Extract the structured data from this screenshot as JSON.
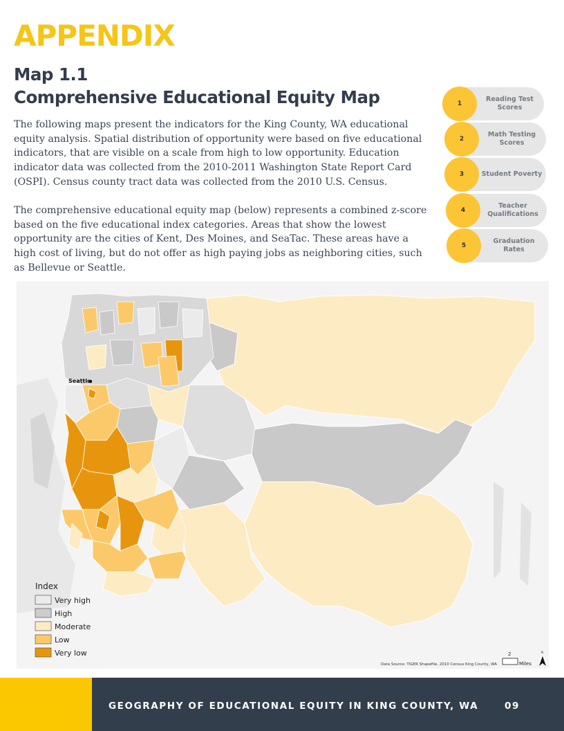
{
  "header": {
    "appendix": "APPENDIX",
    "map_number": "Map 1.1",
    "map_title": "Comprehensive Educational Equity Map"
  },
  "body": {
    "paragraph_1": "The following maps present the indicators for the King County, WA educational equity analysis. Spatial distribution of opportunity were based on five educational indicators, that are visible on a scale from high to low opportunity. Education indicator data was collected from the 2010-2011 Washington State Report Card (OSPI). Census county tract data was collected from the 2010 U.S. Census.",
    "paragraph_2": "The comprehensive educational equity map (below) represents a combined z-score based on the five educational index categories. Areas that show the lowest opportunity are the cities of Kent, Des Moines, and SeaTac. These areas have a high cost of living, but do not offer as high paying jobs as neighboring cities, such as Bellevue or Seattle."
  },
  "indicators": [
    {
      "number": "1",
      "label": "Reading Test\nScores"
    },
    {
      "number": "2",
      "label": "Math Testing\nScores"
    },
    {
      "number": "3",
      "label": "Student Poverty"
    },
    {
      "number": "4",
      "label": "Teacher\nQualifications"
    },
    {
      "number": "5",
      "label": "Graduation Rates"
    }
  ],
  "map": {
    "city_label": "Seattle",
    "legend_title": "Index",
    "legend": [
      {
        "label": "Very high",
        "color": "#ebebeb"
      },
      {
        "label": "High",
        "color": "#cdcdcd"
      },
      {
        "label": "Moderate",
        "color": "#fdebc4"
      },
      {
        "label": "Low",
        "color": "#fcc96a"
      },
      {
        "label": "Very low",
        "color": "#e8950e"
      }
    ],
    "source": "Data Source: TIGER Shapefile, 2010 Census King County, WA",
    "scale_value": "2",
    "scale_unit": "Miles",
    "north_label": "N"
  },
  "footer": {
    "title": "GEOGRAPHY OF EDUCATIONAL EQUITY IN KING COUNTY, WA",
    "page_number": "09"
  },
  "colors": {
    "accent_yellow": "#f5c518",
    "footer_dark": "#323e4b",
    "pill_bg": "#e6e6e6",
    "circle_yellow": "#fbc536"
  }
}
